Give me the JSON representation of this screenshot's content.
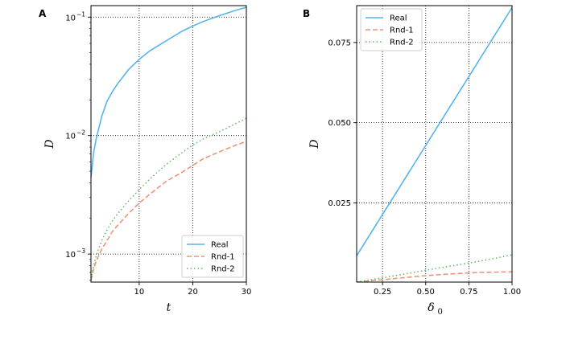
{
  "chart_data": [
    {
      "panel_label": "A",
      "type": "line",
      "xlabel": "t",
      "ylabel": "D",
      "yscale": "log",
      "xlim": [
        1,
        30
      ],
      "ylim": [
        0.00058,
        0.125
      ],
      "xticks": [
        10,
        20,
        30
      ],
      "xtick_labels": [
        "10",
        "20",
        "30"
      ],
      "yticks": [
        0.001,
        0.01,
        0.1
      ],
      "ytick_labels": [
        [
          "10",
          "−3"
        ],
        [
          "10",
          "−2"
        ],
        [
          "10",
          "−1"
        ]
      ],
      "grid": true,
      "legend": "lower right",
      "x": [
        1,
        1.5,
        2,
        3,
        4,
        5,
        6,
        8,
        10,
        12,
        15,
        18,
        20,
        22,
        25,
        28,
        30
      ],
      "series": [
        {
          "name": "Real",
          "color": "#56b4e9",
          "dash": "solid",
          "values": [
            0.0044,
            0.0072,
            0.0095,
            0.0145,
            0.0195,
            0.0235,
            0.0275,
            0.036,
            0.044,
            0.052,
            0.063,
            0.076,
            0.084,
            0.092,
            0.103,
            0.114,
            0.121
          ]
        },
        {
          "name": "Rnd-1",
          "color": "#e9967a",
          "dash": "dashed",
          "values": [
            0.0006,
            0.00075,
            0.00088,
            0.0011,
            0.0013,
            0.00155,
            0.00175,
            0.0022,
            0.0027,
            0.0032,
            0.0041,
            0.0049,
            0.0056,
            0.0064,
            0.0073,
            0.0083,
            0.0089
          ]
        },
        {
          "name": "Rnd-2",
          "color": "#6ab96a",
          "dash": "dotted",
          "values": [
            0.00062,
            0.0008,
            0.00098,
            0.0013,
            0.0016,
            0.0019,
            0.0022,
            0.0028,
            0.0035,
            0.0043,
            0.0057,
            0.0072,
            0.0083,
            0.0094,
            0.0108,
            0.0126,
            0.014
          ]
        }
      ]
    },
    {
      "panel_label": "B",
      "type": "line",
      "xlabel": "δ",
      "xlabel_sub": "0",
      "ylabel": "D",
      "xlim": [
        0.1,
        1.0
      ],
      "ylim": [
        0.0003,
        0.0865
      ],
      "xticks": [
        0.25,
        0.5,
        0.75,
        1.0
      ],
      "xtick_labels": [
        "0.25",
        "0.50",
        "0.75",
        "1.00"
      ],
      "yticks": [
        0.025,
        0.05,
        0.075
      ],
      "ytick_labels": [
        "0.025",
        "0.050",
        "0.075"
      ],
      "grid": true,
      "legend": "upper left",
      "x": [
        0.1,
        0.2,
        0.3,
        0.4,
        0.5,
        0.6,
        0.7,
        0.8,
        0.9,
        1.0
      ],
      "series": [
        {
          "name": "Real",
          "color": "#56b4e9",
          "dash": "solid",
          "values": [
            0.0085,
            0.0171,
            0.0257,
            0.0343,
            0.0429,
            0.0515,
            0.0601,
            0.0687,
            0.0773,
            0.0859
          ]
        },
        {
          "name": "Rnd-1",
          "color": "#e9967a",
          "dash": "dashed",
          "values": [
            0.0003,
            0.0008,
            0.0013,
            0.0018,
            0.0023,
            0.0027,
            0.003,
            0.0033,
            0.0034,
            0.0035
          ]
        },
        {
          "name": "Rnd-2",
          "color": "#6ab96a",
          "dash": "dotted",
          "values": [
            0.0003,
            0.0012,
            0.0021,
            0.003,
            0.004,
            0.0049,
            0.0058,
            0.0067,
            0.0077,
            0.0088
          ]
        }
      ]
    }
  ]
}
